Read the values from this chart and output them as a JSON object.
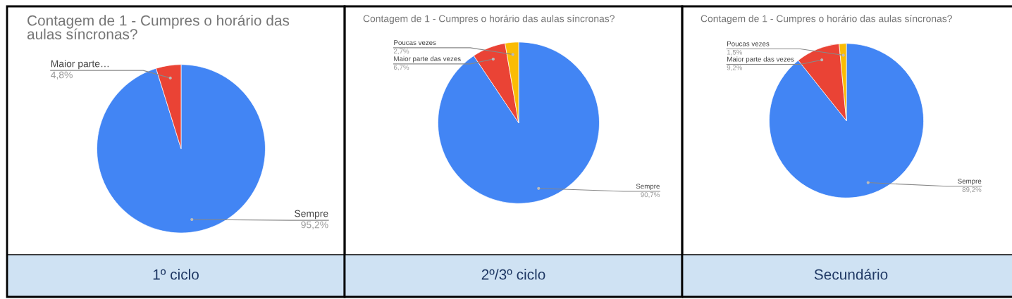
{
  "chart_data": [
    {
      "type": "pie",
      "title": "Contagem de 1 - Cumpres o horário das aulas síncronas?",
      "categories": [
        "Sempre",
        "Maior parte…"
      ],
      "values": [
        95.2,
        4.8
      ],
      "colors": [
        "#4285f4",
        "#ea4335"
      ],
      "value_labels": [
        "95,2%",
        "4,8%"
      ],
      "annotations": [
        "1º ciclo"
      ]
    },
    {
      "type": "pie",
      "title": "Contagem de 1 - Cumpres o horário das aulas síncronas?",
      "categories": [
        "Sempre",
        "Maior parte das vezes",
        "Poucas vezes"
      ],
      "values": [
        90.7,
        6.7,
        2.7
      ],
      "colors": [
        "#4285f4",
        "#ea4335",
        "#fbbc04"
      ],
      "value_labels": [
        "90,7%",
        "6,7%",
        "2,7%"
      ],
      "annotations": [
        "2º/3º ciclo"
      ]
    },
    {
      "type": "pie",
      "title": "Contagem de 1 - Cumpres o horário das aulas síncronas?",
      "categories": [
        "Sempre",
        "Maior parte das vezes",
        "Poucas vezes"
      ],
      "values": [
        89.2,
        9.2,
        1.5
      ],
      "colors": [
        "#4285f4",
        "#ea4335",
        "#fbbc04"
      ],
      "value_labels": [
        "89,2%",
        "9,2%",
        "1,5%"
      ],
      "annotations": [
        "Secundário"
      ]
    }
  ]
}
